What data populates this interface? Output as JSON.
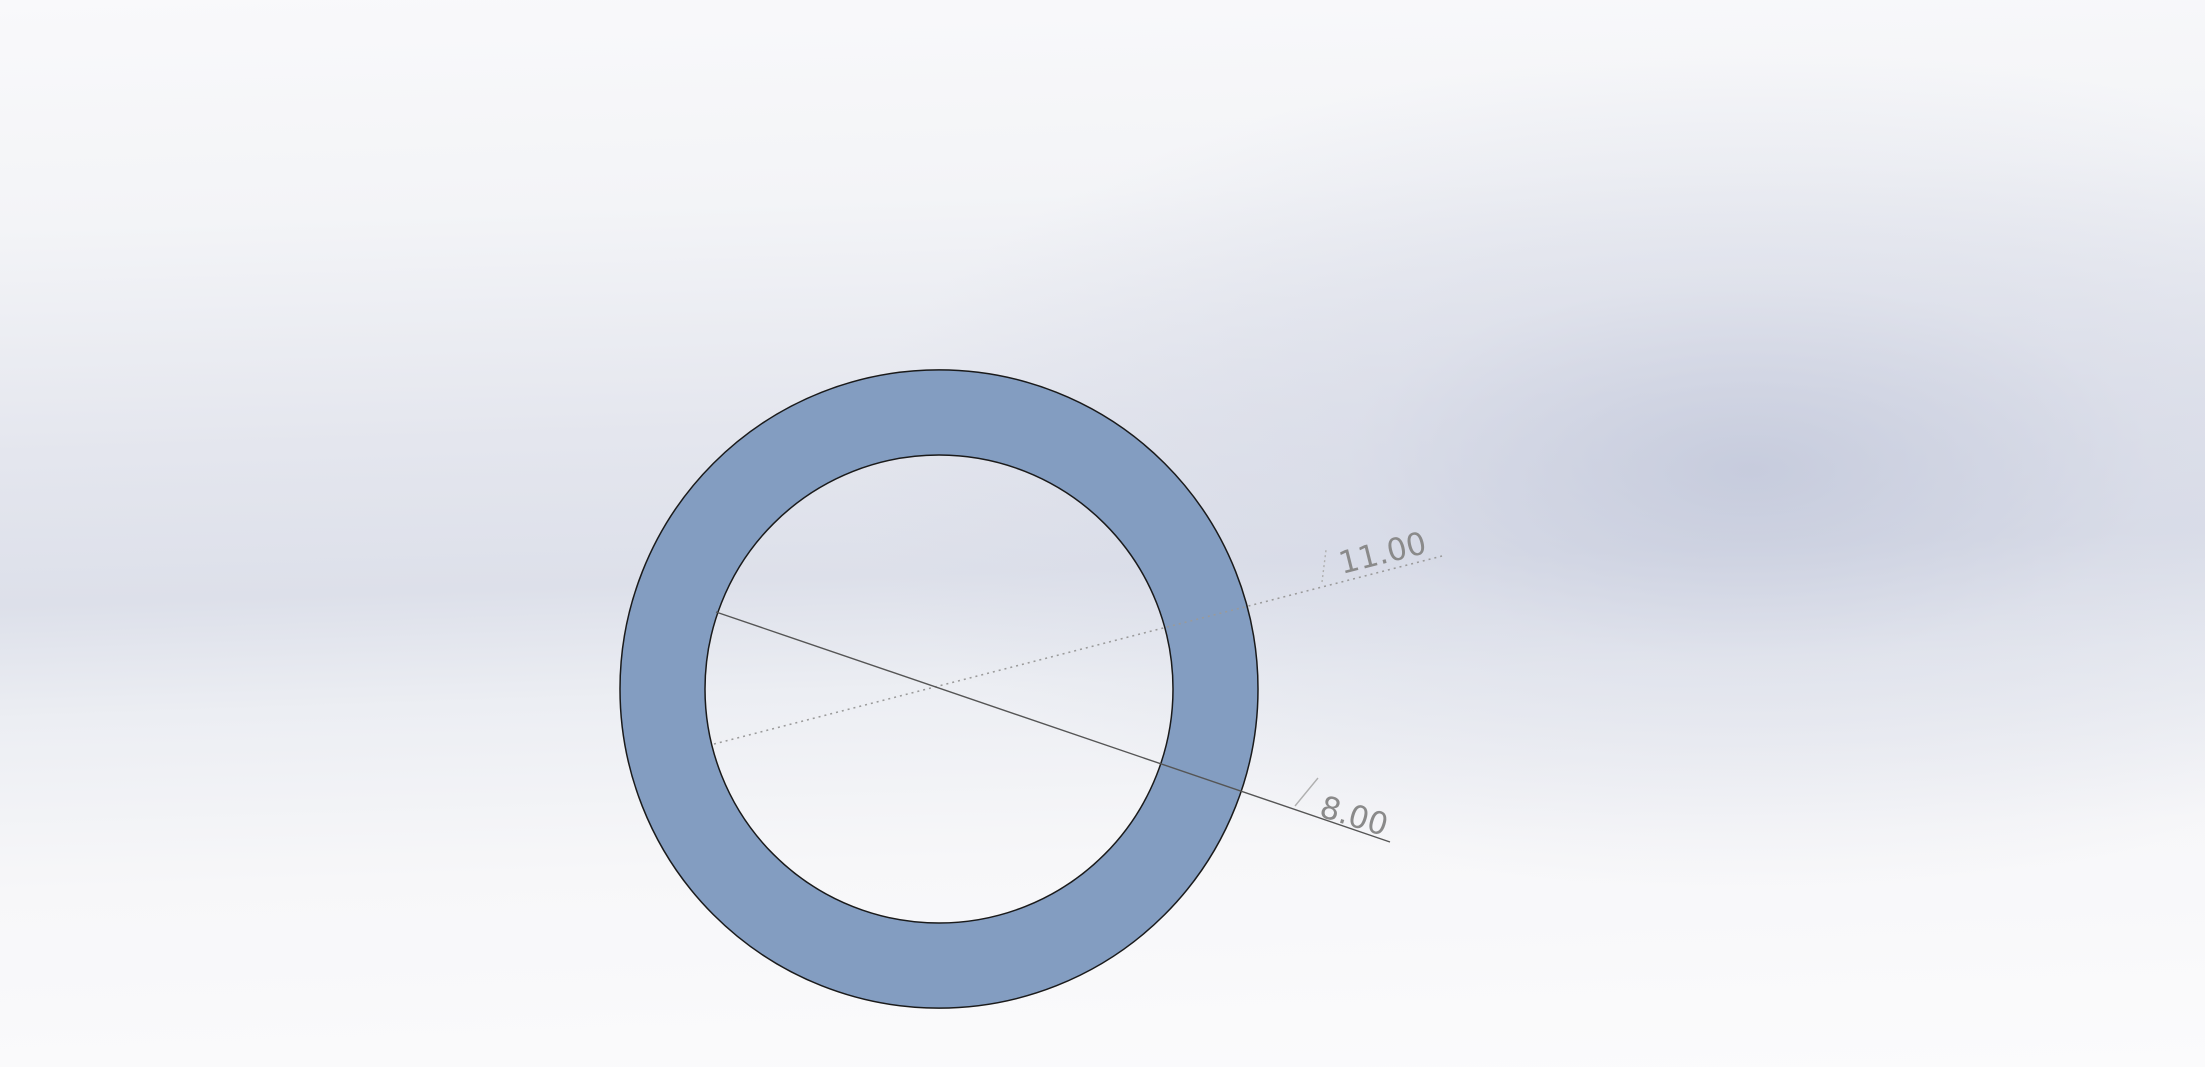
{
  "part": {
    "face_color": "#839DC1",
    "edge_color": "#1a1a1a"
  },
  "dimensions": [
    {
      "id": "outer-diameter",
      "label": "11.00",
      "line_style": "dotted"
    },
    {
      "id": "inner-diameter",
      "label": "8.00",
      "line_style": "solid"
    }
  ]
}
